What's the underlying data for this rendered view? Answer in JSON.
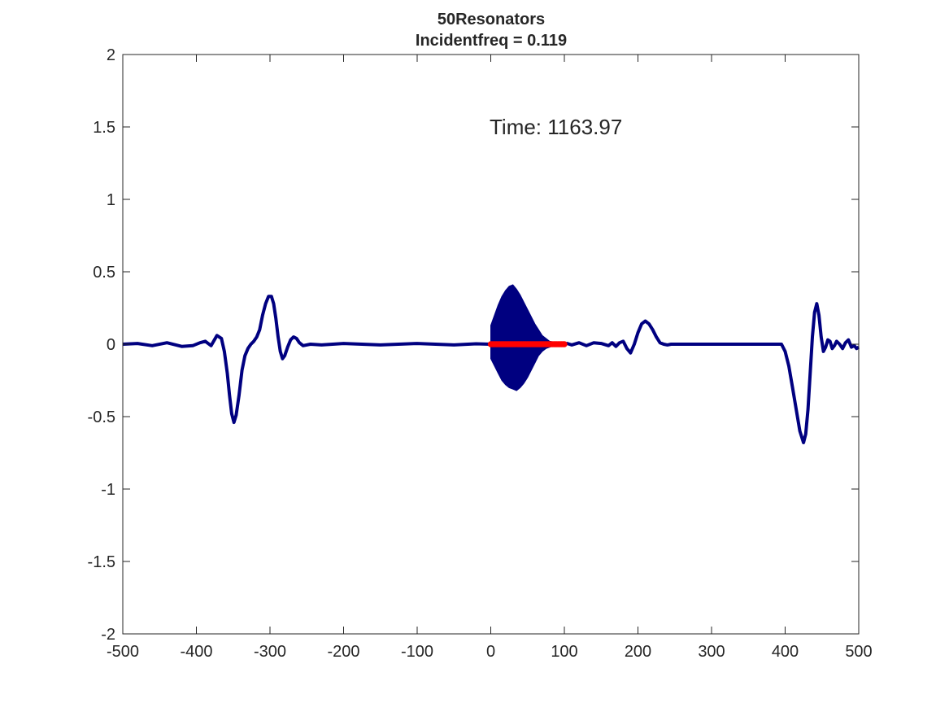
{
  "chart_data": {
    "type": "line",
    "title": [
      "50Resonators",
      "Incidentfreq = 0.119"
    ],
    "annotation": "Time: 1163.97",
    "annotation_position": [
      100,
      1.5
    ],
    "xlabel": "",
    "ylabel": "",
    "xlim": [
      -500,
      500
    ],
    "ylim": [
      -2,
      2
    ],
    "xticks": [
      -500,
      -400,
      -300,
      -200,
      -100,
      0,
      100,
      200,
      300,
      400,
      500
    ],
    "xtick_labels": [
      "-500",
      "-400",
      "-300",
      "-200",
      "-100",
      "0",
      "100",
      "200",
      "300",
      "400",
      "500"
    ],
    "yticks": [
      2,
      1.5,
      1,
      0.5,
      0,
      -0.5,
      -1,
      -1.5,
      -2
    ],
    "ytick_labels": [
      "2",
      "1.5",
      "1",
      "0.5",
      "0",
      "-0.5",
      "-1",
      "-1.5",
      "-2"
    ],
    "grid": false,
    "box": true,
    "series": [
      {
        "color": "#000080",
        "style": "line",
        "x": [
          -500,
          -480,
          -460,
          -440,
          -420,
          -405,
          -395,
          -388,
          -380,
          -372,
          -366,
          -362,
          -358,
          -355,
          -352,
          -349,
          -346,
          -342,
          -338,
          -334,
          -330,
          -326,
          -322,
          -318,
          -314,
          -310,
          -306,
          -302,
          -298,
          -295,
          -292,
          -289,
          -286,
          -283,
          -280,
          -276,
          -272,
          -268,
          -264,
          -260,
          -255,
          -245,
          -230,
          -200,
          -150,
          -100,
          -50,
          -20,
          -1,
          0,
          100,
          104,
          110,
          120,
          130,
          140,
          150,
          160,
          165,
          170,
          175,
          180,
          185,
          190,
          195,
          200,
          205,
          210,
          215,
          220,
          225,
          230,
          235,
          240,
          245,
          260,
          300,
          340,
          370,
          395,
          400,
          405,
          410,
          415,
          420,
          425,
          428,
          431,
          434,
          437,
          440,
          443,
          446,
          449,
          452,
          455,
          458,
          461,
          464,
          467,
          470,
          474,
          478,
          482,
          486,
          490,
          494,
          497,
          500
        ],
        "y": [
          0,
          0.005,
          -0.01,
          0.01,
          -0.015,
          -0.01,
          0.01,
          0.02,
          -0.01,
          0.06,
          0.04,
          -0.05,
          -0.2,
          -0.35,
          -0.48,
          -0.54,
          -0.49,
          -0.35,
          -0.18,
          -0.08,
          -0.03,
          0.0,
          0.02,
          0.05,
          0.1,
          0.2,
          0.28,
          0.33,
          0.33,
          0.28,
          0.18,
          0.05,
          -0.05,
          -0.1,
          -0.08,
          -0.02,
          0.03,
          0.05,
          0.04,
          0.01,
          -0.01,
          0.0,
          -0.005,
          0.005,
          -0.005,
          0.005,
          -0.005,
          0.003,
          0,
          0,
          0,
          0.005,
          -0.005,
          0.01,
          -0.01,
          0.01,
          0.005,
          -0.01,
          0.01,
          -0.015,
          0.01,
          0.02,
          -0.03,
          -0.06,
          0.0,
          0.08,
          0.14,
          0.16,
          0.14,
          0.1,
          0.05,
          0.01,
          0.0,
          -0.005,
          0.0,
          0.0,
          0.0,
          0.0,
          0.0,
          0.0,
          -0.05,
          -0.15,
          -0.3,
          -0.45,
          -0.6,
          -0.68,
          -0.62,
          -0.45,
          -0.2,
          0.05,
          0.22,
          0.28,
          0.2,
          0.05,
          -0.05,
          -0.02,
          0.03,
          0.02,
          -0.03,
          -0.01,
          0.02,
          0.0,
          -0.03,
          0.01,
          0.03,
          -0.02,
          -0.01,
          -0.03,
          -0.02
        ]
      },
      {
        "color": "#000080",
        "style": "filled-envelope",
        "x": [
          0,
          5,
          10,
          15,
          20,
          25,
          30,
          35,
          40,
          45,
          50,
          55,
          60,
          65,
          70,
          75,
          80,
          85,
          90,
          95,
          100
        ],
        "upper": [
          0.13,
          0.2,
          0.27,
          0.33,
          0.37,
          0.4,
          0.41,
          0.38,
          0.34,
          0.29,
          0.24,
          0.19,
          0.14,
          0.1,
          0.06,
          0.04,
          0.02,
          0.015,
          0.01,
          0.005,
          0.0
        ],
        "lower": [
          -0.1,
          -0.15,
          -0.2,
          -0.25,
          -0.28,
          -0.3,
          -0.31,
          -0.32,
          -0.3,
          -0.27,
          -0.23,
          -0.18,
          -0.13,
          -0.08,
          -0.05,
          -0.03,
          -0.02,
          -0.01,
          -0.005,
          0.0,
          0.0
        ]
      },
      {
        "color": "#ff0000",
        "style": "markers",
        "x": [
          0,
          2,
          4,
          6,
          8,
          10,
          12,
          14,
          16,
          18,
          20,
          22,
          24,
          26,
          28,
          30,
          32,
          34,
          36,
          38,
          40,
          42,
          44,
          46,
          48,
          50,
          52,
          54,
          56,
          58,
          60,
          62,
          64,
          66,
          68,
          70,
          72,
          74,
          76,
          78,
          80,
          82,
          84,
          86,
          88,
          90,
          92,
          94,
          96,
          98,
          100
        ],
        "y": [
          0,
          0,
          0,
          0,
          0,
          0,
          0,
          0,
          0,
          0,
          0,
          0,
          0,
          0,
          0,
          0,
          0,
          0,
          0,
          0,
          0,
          0,
          0,
          0,
          0,
          0,
          0,
          0,
          0,
          0,
          0,
          0,
          0,
          0,
          0,
          0,
          0,
          0,
          0,
          0,
          0,
          0,
          0,
          0,
          0,
          0,
          0,
          0,
          0,
          0,
          0
        ]
      }
    ]
  }
}
